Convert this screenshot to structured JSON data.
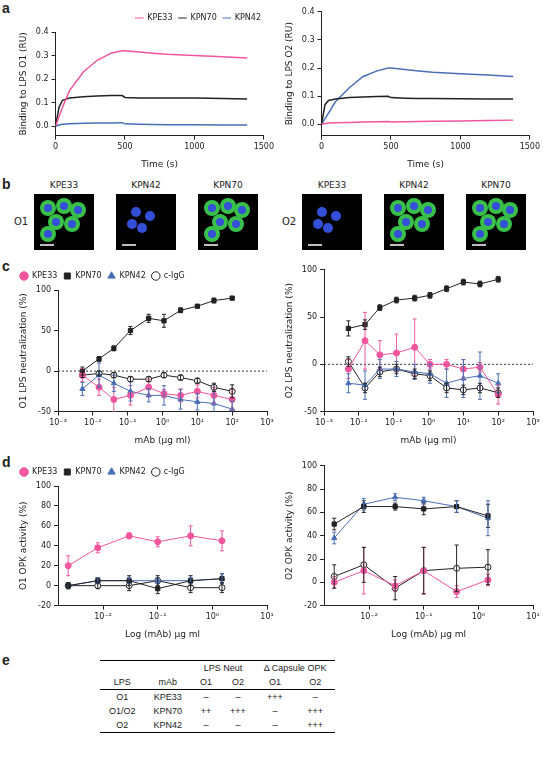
{
  "panel_labels": [
    "a",
    "b",
    "c",
    "d",
    "e"
  ],
  "chart_data": [
    {
      "type": "line",
      "x_label": "Time (s)",
      "y_label": "Binding to LPS O1 (RU)",
      "x": [
        0,
        25,
        50,
        100,
        200,
        300,
        400,
        480,
        500,
        600,
        700,
        800,
        1000,
        1200,
        1380
      ],
      "series": [
        {
          "name": "KPE33",
          "color": "#f0569e",
          "values": [
            0,
            0.04,
            0.08,
            0.15,
            0.23,
            0.28,
            0.31,
            0.32,
            0.32,
            0.315,
            0.31,
            0.305,
            0.3,
            0.295,
            0.29
          ]
        },
        {
          "name": "KPN70",
          "color": "#222222",
          "values": [
            0,
            0.08,
            0.11,
            0.12,
            0.125,
            0.128,
            0.13,
            0.13,
            0.122,
            0.12,
            0.12,
            0.12,
            0.12,
            0.118,
            0.115
          ]
        },
        {
          "name": "KPN42",
          "color": "#4a6fb5",
          "values": [
            0,
            0.005,
            0.008,
            0.01,
            0.012,
            0.013,
            0.014,
            0.015,
            0.01,
            0.008,
            0.007,
            0.006,
            0.006,
            0.005,
            0.005
          ]
        }
      ],
      "xlim": [
        0,
        1500
      ],
      "xticks": [
        0,
        500,
        1000,
        1500
      ],
      "ylim": [
        -0.04,
        0.4
      ],
      "yticks": [
        {
          "value": 0,
          "label": "0.0"
        },
        {
          "value": 0.1,
          "label": "0.1"
        },
        {
          "value": 0.2,
          "label": "0.2"
        },
        {
          "value": 0.3,
          "label": "0.3"
        },
        {
          "value": 0.4,
          "label": "0.4"
        }
      ],
      "grid": false,
      "legend": "top-right"
    },
    {
      "type": "line",
      "x_label": "Time (s)",
      "y_label": "Binding to LPS O2 (RU)",
      "x": [
        0,
        25,
        50,
        100,
        200,
        300,
        400,
        480,
        500,
        600,
        700,
        800,
        1000,
        1200,
        1380
      ],
      "series": [
        {
          "name": "KPE33",
          "color": "#f0569e",
          "values": [
            0,
            0.003,
            0.005,
            0.006,
            0.007,
            0.008,
            0.009,
            0.01,
            0.008,
            0.009,
            0.01,
            0.011,
            0.012,
            0.014,
            0.015
          ]
        },
        {
          "name": "KPN70",
          "color": "#222222",
          "values": [
            0,
            0.07,
            0.085,
            0.09,
            0.095,
            0.097,
            0.099,
            0.1,
            0.095,
            0.093,
            0.092,
            0.092,
            0.091,
            0.09,
            0.09
          ]
        },
        {
          "name": "KPN42",
          "color": "#4a6fb5",
          "values": [
            0,
            0.02,
            0.04,
            0.08,
            0.13,
            0.17,
            0.19,
            0.2,
            0.2,
            0.195,
            0.19,
            0.185,
            0.18,
            0.175,
            0.17
          ]
        }
      ],
      "xlim": [
        0,
        1500
      ],
      "xticks": [
        0,
        500,
        1000,
        1500
      ],
      "ylim": [
        -0.04,
        0.4
      ],
      "yticks": [
        {
          "value": 0,
          "label": "0.0"
        },
        {
          "value": 0.1,
          "label": "0.1"
        },
        {
          "value": 0.2,
          "label": "0.2"
        },
        {
          "value": 0.3,
          "label": "0.3"
        },
        {
          "value": 0.4,
          "label": "0.4"
        }
      ],
      "grid": false
    },
    {
      "type": "line",
      "x_label": "mAb (µg ml)",
      "y_label": "O1 LPS neutralization (%)",
      "log": "x",
      "x": [
        0.005,
        0.015,
        0.04,
        0.12,
        0.4,
        1.1,
        3.3,
        10,
        30,
        100
      ],
      "series": [
        {
          "name": "KPE33",
          "color": "#f0569e",
          "marker": "circle",
          "values": [
            -5,
            -20,
            -35,
            -30,
            -20,
            -28,
            -30,
            -25,
            -30,
            -35
          ],
          "errors": [
            8,
            10,
            15,
            12,
            10,
            5,
            8,
            8,
            10,
            12
          ]
        },
        {
          "name": "KPN70",
          "color": "#222222",
          "marker": "square",
          "values": [
            0,
            15,
            28,
            50,
            65,
            62,
            75,
            80,
            87,
            90
          ],
          "errors": [
            5,
            3,
            3,
            5,
            5,
            8,
            3,
            2,
            3,
            2
          ]
        },
        {
          "name": "KPN42",
          "color": "#4a6fb5",
          "marker": "triangle",
          "values": [
            -22,
            -5,
            -15,
            -25,
            -30,
            -30,
            -35,
            -38,
            -40,
            -47
          ],
          "errors": [
            8,
            15,
            10,
            12,
            8,
            12,
            12,
            10,
            15,
            10
          ]
        },
        {
          "name": "c-IgG",
          "color": "#222222",
          "marker": "open-circle",
          "values": [
            -5,
            -3,
            -5,
            -10,
            -10,
            -5,
            -8,
            -12,
            -20,
            -25
          ],
          "errors": [
            3,
            3,
            3,
            3,
            3,
            3,
            3,
            3,
            5,
            8
          ]
        }
      ],
      "xlim": [
        0.001,
        1000
      ],
      "xticks": [
        {
          "value": 0.001,
          "label": "10⁻³"
        },
        {
          "value": 0.01,
          "label": "10⁻²"
        },
        {
          "value": 0.1,
          "label": "10⁻¹"
        },
        {
          "value": 1,
          "label": "10⁰"
        },
        {
          "value": 10,
          "label": "10¹"
        },
        {
          "value": 100,
          "label": "10²"
        },
        {
          "value": 1000,
          "label": "10³"
        }
      ],
      "ylim": [
        -50,
        100
      ],
      "yticks": [
        -50,
        0,
        50,
        100
      ],
      "reference_lines": [
        {
          "y": 0,
          "line_style": "dotted"
        }
      ],
      "grid": false,
      "legend": "top-left"
    },
    {
      "type": "line",
      "x_label": "mAb (µg ml)",
      "y_label": "O2 LPS neutralization (%)",
      "log": "x",
      "x": [
        0.005,
        0.015,
        0.04,
        0.12,
        0.4,
        1.1,
        3.3,
        10,
        30,
        100
      ],
      "series": [
        {
          "name": "KPE33",
          "color": "#f0569e",
          "marker": "circle",
          "values": [
            -5,
            25,
            10,
            12,
            18,
            0,
            0,
            -5,
            -3,
            -32
          ],
          "errors": [
            10,
            30,
            15,
            20,
            30,
            5,
            5,
            10,
            5,
            10
          ]
        },
        {
          "name": "KPN70",
          "color": "#222222",
          "marker": "square",
          "values": [
            38,
            42,
            60,
            68,
            70,
            73,
            80,
            87,
            85,
            90
          ],
          "errors": [
            8,
            5,
            3,
            3,
            3,
            3,
            3,
            3,
            3,
            3
          ]
        },
        {
          "name": "KPN42",
          "color": "#4a6fb5",
          "marker": "triangle",
          "values": [
            -20,
            -22,
            -5,
            -5,
            -8,
            -10,
            -20,
            -15,
            -12,
            -20
          ],
          "errors": [
            10,
            15,
            10,
            8,
            8,
            10,
            15,
            20,
            25,
            10
          ]
        },
        {
          "name": "c-IgG",
          "color": "#222222",
          "marker": "open-circle",
          "values": [
            3,
            -25,
            -8,
            -5,
            -10,
            -12,
            -25,
            -27,
            -25,
            -30
          ],
          "errors": [
            5,
            5,
            5,
            5,
            5,
            5,
            5,
            5,
            5,
            5
          ]
        }
      ],
      "xlim": [
        0.001,
        1000
      ],
      "xticks": [
        {
          "value": 0.001,
          "label": "10⁻³"
        },
        {
          "value": 0.01,
          "label": "10⁻²"
        },
        {
          "value": 0.1,
          "label": "10⁻¹"
        },
        {
          "value": 1,
          "label": "10⁰"
        },
        {
          "value": 10,
          "label": "10¹"
        },
        {
          "value": 100,
          "label": "10²"
        },
        {
          "value": 1000,
          "label": "10³"
        }
      ],
      "ylim": [
        -50,
        100
      ],
      "yticks": [
        -50,
        0,
        50,
        100
      ],
      "reference_lines": [
        {
          "y": 0,
          "line_style": "dotted"
        }
      ],
      "grid": false
    },
    {
      "type": "line",
      "x_label": "Log (mAb) µg ml",
      "y_label": "O1 OPK activity (%)",
      "log": "x",
      "x": [
        0.0023,
        0.008,
        0.03,
        0.1,
        0.4,
        1.5
      ],
      "series": [
        {
          "name": "KPE33",
          "color": "#f0569e",
          "marker": "circle",
          "values": [
            20,
            38,
            50,
            44,
            50,
            45
          ],
          "errors": [
            10,
            5,
            3,
            5,
            10,
            10
          ]
        },
        {
          "name": "KPN70",
          "color": "#222222",
          "marker": "square",
          "values": [
            0,
            5,
            5,
            -3,
            5,
            7
          ],
          "errors": [
            3,
            3,
            5,
            5,
            5,
            5
          ]
        },
        {
          "name": "KPN42",
          "color": "#4a6fb5",
          "marker": "triangle",
          "values": [
            0,
            5,
            5,
            5,
            5,
            7
          ],
          "errors": [
            3,
            3,
            3,
            3,
            3,
            5
          ]
        },
        {
          "name": "c-IgG",
          "color": "#222222",
          "marker": "open-circle",
          "values": [
            0,
            0,
            0,
            5,
            -2,
            -2
          ],
          "errors": [
            3,
            3,
            5,
            5,
            5,
            5
          ]
        }
      ],
      "xlim": [
        0.0015,
        10
      ],
      "xticks": [
        {
          "value": 0.01,
          "label": "10⁻²"
        },
        {
          "value": 0.1,
          "label": "10⁻¹"
        },
        {
          "value": 1,
          "label": "10⁰"
        },
        {
          "value": 10,
          "label": "10¹"
        }
      ],
      "ylim": [
        -20,
        100
      ],
      "yticks": [
        -20,
        0,
        20,
        40,
        60,
        80,
        100
      ],
      "grid": false,
      "legend": "top-left"
    },
    {
      "type": "line",
      "x_label": "Log (mAb) µg ml",
      "y_label": "O2 OPK activity (%)",
      "log": "x",
      "x": [
        0.0023,
        0.008,
        0.03,
        0.1,
        0.4,
        1.5
      ],
      "series": [
        {
          "name": "KPE33",
          "color": "#f0569e",
          "marker": "circle",
          "values": [
            0,
            10,
            -3,
            10,
            -8,
            2
          ],
          "errors": [
            5,
            20,
            5,
            20,
            5,
            5
          ]
        },
        {
          "name": "KPN70",
          "color": "#222222",
          "marker": "square",
          "values": [
            50,
            65,
            65,
            63,
            65,
            57
          ],
          "errors": [
            5,
            5,
            3,
            5,
            5,
            10
          ]
        },
        {
          "name": "KPN42",
          "color": "#4a6fb5",
          "marker": "triangle",
          "values": [
            38,
            67,
            73,
            70,
            65,
            55
          ],
          "errors": [
            5,
            5,
            3,
            3,
            5,
            15
          ]
        },
        {
          "name": "c-IgG",
          "color": "#222222",
          "marker": "open-circle",
          "values": [
            5,
            15,
            -5,
            10,
            12,
            13
          ],
          "errors": [
            10,
            15,
            10,
            20,
            20,
            15
          ]
        }
      ],
      "xlim": [
        0.0015,
        10
      ],
      "xticks": [
        {
          "value": 0.01,
          "label": "10⁻²"
        },
        {
          "value": 0.1,
          "label": "10⁻¹"
        },
        {
          "value": 1,
          "label": "10⁰"
        },
        {
          "value": 10,
          "label": "10¹"
        }
      ],
      "ylim": [
        -20,
        100
      ],
      "yticks": [
        -20,
        0,
        20,
        40,
        60,
        80,
        100
      ],
      "grid": false
    }
  ],
  "images": [
    {
      "row_label": "O1",
      "columns": [
        "KPE33",
        "KPN42",
        "KPN70"
      ],
      "green_staining": [
        true,
        false,
        true
      ]
    },
    {
      "row_label": "O2",
      "columns": [
        "KPE33",
        "KPN42",
        "KPN70"
      ],
      "green_staining": [
        false,
        true,
        true
      ]
    }
  ],
  "table": {
    "header": [
      [
        "LPS",
        "mAb",
        "LPS Neut",
        "Δ Capsule OPK"
      ],
      [
        "O1",
        "O2",
        "O1",
        "O2"
      ]
    ],
    "rows": [
      [
        "O1",
        "KPE33",
        "–",
        "–",
        "+++",
        "–"
      ],
      [
        "O1/O2",
        "KPN70",
        "++",
        "+++",
        "–",
        "+++"
      ],
      [
        "O2",
        "KPN42",
        "–",
        "–",
        "–",
        "+++"
      ]
    ]
  }
}
